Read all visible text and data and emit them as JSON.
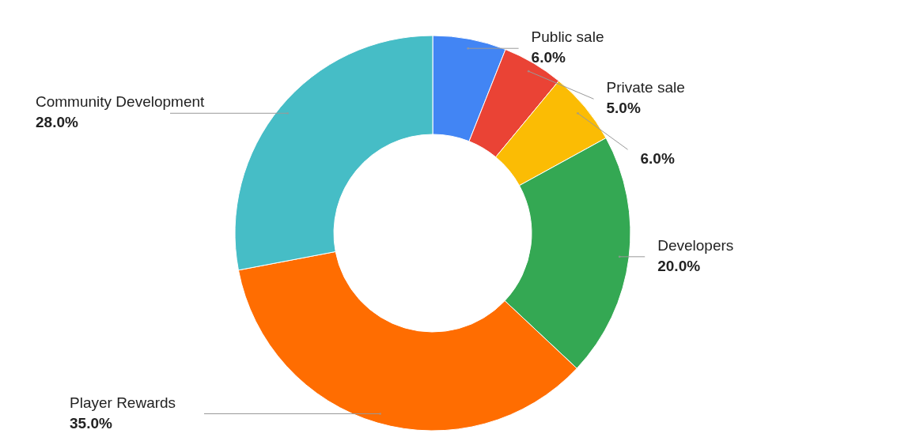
{
  "chart_data": {
    "type": "donut",
    "categories": [
      "Public sale",
      "Private sale",
      null,
      "Developers",
      "Player Rewards",
      "Community Development"
    ],
    "values": [
      6,
      5,
      6,
      20,
      35,
      28
    ],
    "value_labels": [
      "6.0%",
      "5.0%",
      "6.0%",
      "20.0%",
      "35.0%",
      "28.0%"
    ],
    "colors": [
      "#4285f4",
      "#ea4335",
      "#fbbc04",
      "#34a853",
      "#ff6d01",
      "#46bdc6"
    ]
  }
}
